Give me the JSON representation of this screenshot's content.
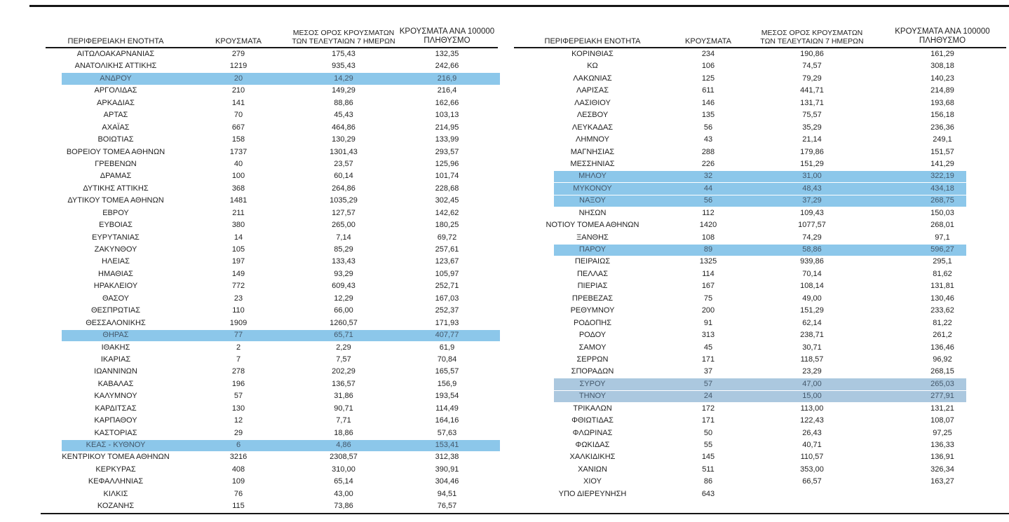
{
  "colors": {
    "highlight_blue": "#8CC7EA",
    "highlight_blue_light": "#ABC8DF",
    "highlight_text": "#44586B",
    "rule": "#161616"
  },
  "headers": {
    "col1": "ΠΕΡΙΦΕΡΕΙΑΚΗ ΕΝΟΤΗΤΑ",
    "col2": "ΚΡΟΥΣΜΑΤΑ",
    "col3_line1": "ΜΕΣΟΣ ΟΡΟΣ ΚΡΟΥΣΜΑΤΩΝ",
    "col3_line2": "ΤΩΝ ΤΕΛΕΥΤΑΙΩΝ 7 ΗΜΕΡΩΝ",
    "col4_line1": "ΚΡΟΥΣΜΑΤΑ ΑΝΑ 100000",
    "col4_line2": "ΠΛΗΘΥΣΜΟ"
  },
  "left_table": {
    "rows": [
      {
        "name": "ΑΙΤΩΛΟΑΚΑΡΝΑΝΙΑΣ",
        "cases": "279",
        "avg7": "175,43",
        "per100k": "132,35",
        "hl": null
      },
      {
        "name": "ΑΝΑΤΟΛΙΚΗΣ ΑΤΤΙΚΗΣ",
        "cases": "1219",
        "avg7": "935,43",
        "per100k": "242,66",
        "hl": null
      },
      {
        "name": "ΑΝΔΡΟΥ",
        "cases": "20",
        "avg7": "14,29",
        "per100k": "216,9",
        "hl": "blue"
      },
      {
        "name": "ΑΡΓΟΛΙΔΑΣ",
        "cases": "210",
        "avg7": "149,29",
        "per100k": "216,4",
        "hl": null
      },
      {
        "name": "ΑΡΚΑΔΙΑΣ",
        "cases": "141",
        "avg7": "88,86",
        "per100k": "162,66",
        "hl": null
      },
      {
        "name": "ΑΡΤΑΣ",
        "cases": "70",
        "avg7": "45,43",
        "per100k": "103,13",
        "hl": null
      },
      {
        "name": "ΑΧΑΪΑΣ",
        "cases": "667",
        "avg7": "464,86",
        "per100k": "214,95",
        "hl": null
      },
      {
        "name": "ΒΟΙΩΤΙΑΣ",
        "cases": "158",
        "avg7": "130,29",
        "per100k": "133,99",
        "hl": null
      },
      {
        "name": "ΒΟΡΕΙΟΥ ΤΟΜΕΑ ΑΘΗΝΩΝ",
        "cases": "1737",
        "avg7": "1301,43",
        "per100k": "293,57",
        "hl": null
      },
      {
        "name": "ΓΡΕΒΕΝΩΝ",
        "cases": "40",
        "avg7": "23,57",
        "per100k": "125,96",
        "hl": null
      },
      {
        "name": "ΔΡΑΜΑΣ",
        "cases": "100",
        "avg7": "60,14",
        "per100k": "101,74",
        "hl": null
      },
      {
        "name": "ΔΥΤΙΚΗΣ ΑΤΤΙΚΗΣ",
        "cases": "368",
        "avg7": "264,86",
        "per100k": "228,68",
        "hl": null
      },
      {
        "name": "ΔΥΤΙΚΟΥ ΤΟΜΕΑ ΑΘΗΝΩΝ",
        "cases": "1481",
        "avg7": "1035,29",
        "per100k": "302,45",
        "hl": null
      },
      {
        "name": "ΕΒΡΟΥ",
        "cases": "211",
        "avg7": "127,57",
        "per100k": "142,62",
        "hl": null
      },
      {
        "name": "ΕΥΒΟΙΑΣ",
        "cases": "380",
        "avg7": "265,00",
        "per100k": "180,25",
        "hl": null
      },
      {
        "name": "ΕΥΡΥΤΑΝΙΑΣ",
        "cases": "14",
        "avg7": "7,14",
        "per100k": "69,72",
        "hl": null
      },
      {
        "name": "ΖΑΚΥΝΘΟΥ",
        "cases": "105",
        "avg7": "85,29",
        "per100k": "257,61",
        "hl": null
      },
      {
        "name": "ΗΛΕΙΑΣ",
        "cases": "197",
        "avg7": "133,43",
        "per100k": "123,67",
        "hl": null
      },
      {
        "name": "ΗΜΑΘΙΑΣ",
        "cases": "149",
        "avg7": "93,29",
        "per100k": "105,97",
        "hl": null
      },
      {
        "name": "ΗΡΑΚΛΕΙΟΥ",
        "cases": "772",
        "avg7": "609,43",
        "per100k": "252,71",
        "hl": null
      },
      {
        "name": "ΘΑΣΟΥ",
        "cases": "23",
        "avg7": "12,29",
        "per100k": "167,03",
        "hl": null
      },
      {
        "name": "ΘΕΣΠΡΩΤΙΑΣ",
        "cases": "110",
        "avg7": "66,00",
        "per100k": "252,37",
        "hl": null
      },
      {
        "name": "ΘΕΣΣΑΛΟΝΙΚΗΣ",
        "cases": "1909",
        "avg7": "1260,57",
        "per100k": "171,93",
        "hl": null
      },
      {
        "name": "ΘΗΡΑΣ",
        "cases": "77",
        "avg7": "65,71",
        "per100k": "407,77",
        "hl": "blue"
      },
      {
        "name": "ΙΘΑΚΗΣ",
        "cases": "2",
        "avg7": "2,29",
        "per100k": "61,9",
        "hl": null
      },
      {
        "name": "ΙΚΑΡΙΑΣ",
        "cases": "7",
        "avg7": "7,57",
        "per100k": "70,84",
        "hl": null
      },
      {
        "name": "ΙΩΑΝΝΙΝΩΝ",
        "cases": "278",
        "avg7": "202,29",
        "per100k": "165,57",
        "hl": null
      },
      {
        "name": "ΚΑΒΑΛΑΣ",
        "cases": "196",
        "avg7": "136,57",
        "per100k": "156,9",
        "hl": null
      },
      {
        "name": "ΚΑΛΥΜΝΟΥ",
        "cases": "57",
        "avg7": "31,86",
        "per100k": "193,54",
        "hl": null
      },
      {
        "name": "ΚΑΡΔΙΤΣΑΣ",
        "cases": "130",
        "avg7": "90,71",
        "per100k": "114,49",
        "hl": null
      },
      {
        "name": "ΚΑΡΠΑΘΟΥ",
        "cases": "12",
        "avg7": "7,71",
        "per100k": "164,16",
        "hl": null
      },
      {
        "name": "ΚΑΣΤΟΡΙΑΣ",
        "cases": "29",
        "avg7": "18,86",
        "per100k": "57,63",
        "hl": null
      },
      {
        "name": "ΚΕΑΣ - ΚΥΘΝΟΥ",
        "cases": "6",
        "avg7": "4,86",
        "per100k": "153,41",
        "hl": "blue"
      },
      {
        "name": "ΚΕΝΤΡΙΚΟΥ ΤΟΜΕΑ ΑΘΗΝΩΝ",
        "cases": "3216",
        "avg7": "2308,57",
        "per100k": "312,38",
        "hl": null
      },
      {
        "name": "ΚΕΡΚΥΡΑΣ",
        "cases": "408",
        "avg7": "310,00",
        "per100k": "390,91",
        "hl": null
      },
      {
        "name": "ΚΕΦΑΛΛΗΝΙΑΣ",
        "cases": "109",
        "avg7": "65,14",
        "per100k": "304,46",
        "hl": null
      },
      {
        "name": "ΚΙΛΚΙΣ",
        "cases": "76",
        "avg7": "43,00",
        "per100k": "94,51",
        "hl": null
      },
      {
        "name": "ΚΟΖΑΝΗΣ",
        "cases": "115",
        "avg7": "73,86",
        "per100k": "76,57",
        "hl": null
      }
    ]
  },
  "right_table": {
    "rows": [
      {
        "name": "ΚΟΡΙΝΘΙΑΣ",
        "cases": "234",
        "avg7": "190,86",
        "per100k": "161,29",
        "hl": null
      },
      {
        "name": "ΚΩ",
        "cases": "106",
        "avg7": "74,57",
        "per100k": "308,18",
        "hl": null
      },
      {
        "name": "ΛΑΚΩΝΙΑΣ",
        "cases": "125",
        "avg7": "79,29",
        "per100k": "140,23",
        "hl": null
      },
      {
        "name": "ΛΑΡΙΣΑΣ",
        "cases": "611",
        "avg7": "441,71",
        "per100k": "214,89",
        "hl": null
      },
      {
        "name": "ΛΑΣΙΘΙΟΥ",
        "cases": "146",
        "avg7": "131,71",
        "per100k": "193,68",
        "hl": null
      },
      {
        "name": "ΛΕΣΒΟΥ",
        "cases": "135",
        "avg7": "75,57",
        "per100k": "156,18",
        "hl": null
      },
      {
        "name": "ΛΕΥΚΑΔΑΣ",
        "cases": "56",
        "avg7": "35,29",
        "per100k": "236,36",
        "hl": null
      },
      {
        "name": "ΛΗΜΝΟΥ",
        "cases": "43",
        "avg7": "21,14",
        "per100k": "249,1",
        "hl": null
      },
      {
        "name": "ΜΑΓΝΗΣΙΑΣ",
        "cases": "288",
        "avg7": "179,86",
        "per100k": "151,57",
        "hl": null
      },
      {
        "name": "ΜΕΣΣΗΝΙΑΣ",
        "cases": "226",
        "avg7": "151,29",
        "per100k": "141,29",
        "hl": null
      },
      {
        "name": "ΜΗΛΟΥ",
        "cases": "32",
        "avg7": "31,00",
        "per100k": "322,19",
        "hl": "blue"
      },
      {
        "name": "ΜΥΚΟΝΟΥ",
        "cases": "44",
        "avg7": "48,43",
        "per100k": "434,18",
        "hl": "blue"
      },
      {
        "name": "ΝΑΞΟΥ",
        "cases": "56",
        "avg7": "37,29",
        "per100k": "268,75",
        "hl": "blue"
      },
      {
        "name": "ΝΗΣΩΝ",
        "cases": "112",
        "avg7": "109,43",
        "per100k": "150,03",
        "hl": null
      },
      {
        "name": "ΝΟΤΙΟΥ ΤΟΜΕΑ ΑΘΗΝΩΝ",
        "cases": "1420",
        "avg7": "1077,57",
        "per100k": "268,01",
        "hl": null
      },
      {
        "name": "ΞΑΝΘΗΣ",
        "cases": "108",
        "avg7": "74,29",
        "per100k": "97,1",
        "hl": null
      },
      {
        "name": "ΠΑΡΟΥ",
        "cases": "89",
        "avg7": "58,86",
        "per100k": "596,27",
        "hl": "blue"
      },
      {
        "name": "ΠΕΙΡΑΙΩΣ",
        "cases": "1325",
        "avg7": "939,86",
        "per100k": "295,1",
        "hl": null
      },
      {
        "name": "ΠΕΛΛΑΣ",
        "cases": "114",
        "avg7": "70,14",
        "per100k": "81,62",
        "hl": null
      },
      {
        "name": "ΠΙΕΡΙΑΣ",
        "cases": "167",
        "avg7": "108,14",
        "per100k": "131,81",
        "hl": null
      },
      {
        "name": "ΠΡΕΒΕΖΑΣ",
        "cases": "75",
        "avg7": "49,00",
        "per100k": "130,46",
        "hl": null
      },
      {
        "name": "ΡΕΘΥΜΝΟΥ",
        "cases": "200",
        "avg7": "151,29",
        "per100k": "233,62",
        "hl": null
      },
      {
        "name": "ΡΟΔΟΠΗΣ",
        "cases": "91",
        "avg7": "62,14",
        "per100k": "81,22",
        "hl": null
      },
      {
        "name": "ΡΟΔΟΥ",
        "cases": "313",
        "avg7": "238,71",
        "per100k": "261,2",
        "hl": null
      },
      {
        "name": "ΣΑΜΟΥ",
        "cases": "45",
        "avg7": "30,71",
        "per100k": "136,46",
        "hl": null
      },
      {
        "name": "ΣΕΡΡΩΝ",
        "cases": "171",
        "avg7": "118,57",
        "per100k": "96,92",
        "hl": null
      },
      {
        "name": "ΣΠΟΡΑΔΩΝ",
        "cases": "37",
        "avg7": "23,29",
        "per100k": "268,15",
        "hl": null
      },
      {
        "name": "ΣΥΡΟΥ",
        "cases": "57",
        "avg7": "47,00",
        "per100k": "265,03",
        "hl": "light"
      },
      {
        "name": "ΤΗΝΟΥ",
        "cases": "24",
        "avg7": "15,00",
        "per100k": "277,91",
        "hl": "light"
      },
      {
        "name": "ΤΡΙΚΑΛΩΝ",
        "cases": "172",
        "avg7": "113,00",
        "per100k": "131,21",
        "hl": null
      },
      {
        "name": "ΦΘΙΩΤΙΔΑΣ",
        "cases": "171",
        "avg7": "122,43",
        "per100k": "108,07",
        "hl": null
      },
      {
        "name": "ΦΛΩΡΙΝΑΣ",
        "cases": "50",
        "avg7": "26,43",
        "per100k": "97,25",
        "hl": null
      },
      {
        "name": "ΦΩΚΙΔΑΣ",
        "cases": "55",
        "avg7": "40,71",
        "per100k": "136,33",
        "hl": null
      },
      {
        "name": "ΧΑΛΚΙΔΙΚΗΣ",
        "cases": "145",
        "avg7": "110,57",
        "per100k": "136,91",
        "hl": null
      },
      {
        "name": "ΧΑΝΙΩΝ",
        "cases": "511",
        "avg7": "353,00",
        "per100k": "326,34",
        "hl": null
      },
      {
        "name": "ΧΙΟΥ",
        "cases": "86",
        "avg7": "66,57",
        "per100k": "163,27",
        "hl": null
      },
      {
        "name": "ΥΠΟ ΔΙΕΡΕΥΝΗΣΗ",
        "cases": "643",
        "avg7": "",
        "per100k": "",
        "hl": null
      }
    ]
  }
}
